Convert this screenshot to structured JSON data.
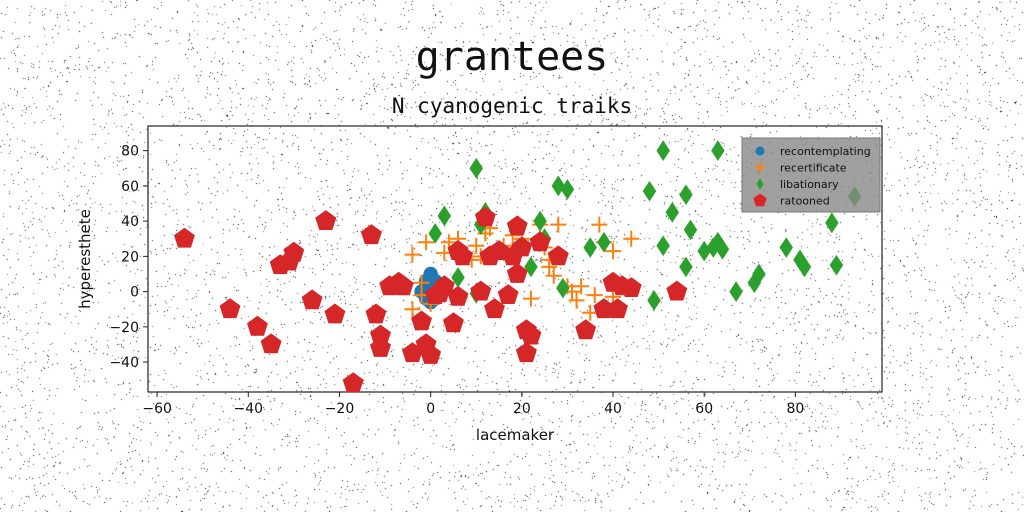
{
  "chart_data": {
    "type": "scatter",
    "title": "grantees",
    "subtitle": "N cyanogenic traiks",
    "xlabel": "lacemaker",
    "ylabel": "hyperesthete",
    "xlim": [
      -62,
      99
    ],
    "ylim": [
      -57,
      94
    ],
    "xticks": [
      -60,
      -40,
      -20,
      0,
      20,
      40,
      60,
      80
    ],
    "yticks": [
      -40,
      -20,
      0,
      20,
      40,
      60,
      80
    ],
    "grid": false,
    "legend_position": "top-right",
    "series": [
      {
        "name": "recontemplating",
        "marker": "circle",
        "color": "#1f77b4",
        "points": [
          [
            0,
            0
          ],
          [
            0,
            1
          ],
          [
            0,
            2
          ],
          [
            0,
            3
          ],
          [
            0,
            4
          ],
          [
            0,
            5
          ],
          [
            0,
            6
          ],
          [
            0,
            7
          ],
          [
            0,
            8
          ],
          [
            0,
            9
          ],
          [
            0,
            10
          ],
          [
            0,
            -1
          ],
          [
            0,
            -2
          ],
          [
            0,
            -3
          ],
          [
            0,
            -4
          ],
          [
            0,
            -5
          ],
          [
            0,
            -6
          ],
          [
            1,
            0
          ],
          [
            1,
            2
          ],
          [
            1,
            4
          ],
          [
            1,
            -2
          ],
          [
            -1,
            1
          ],
          [
            -1,
            3
          ],
          [
            -1,
            -1
          ],
          [
            1,
            6
          ],
          [
            -1,
            6
          ],
          [
            1,
            -4
          ],
          [
            -1,
            -4
          ],
          [
            2,
            1
          ],
          [
            -2,
            0
          ]
        ]
      },
      {
        "name": "recertificate",
        "marker": "plus",
        "color": "#ff7f0e",
        "points": [
          [
            -4,
            21
          ],
          [
            -4,
            -10
          ],
          [
            -2,
            5
          ],
          [
            -2,
            -2
          ],
          [
            -1,
            28
          ],
          [
            0,
            -7
          ],
          [
            3,
            22
          ],
          [
            4,
            28
          ],
          [
            6,
            30
          ],
          [
            9,
            18
          ],
          [
            10,
            26
          ],
          [
            11,
            20
          ],
          [
            12,
            33
          ],
          [
            13,
            36
          ],
          [
            14,
            -10
          ],
          [
            16,
            22
          ],
          [
            16,
            26
          ],
          [
            18,
            32
          ],
          [
            20,
            30
          ],
          [
            22,
            -4
          ],
          [
            24,
            38
          ],
          [
            25,
            25
          ],
          [
            26,
            18
          ],
          [
            26,
            14
          ],
          [
            27,
            9
          ],
          [
            28,
            38
          ],
          [
            30,
            3
          ],
          [
            31,
            0
          ],
          [
            32,
            -5
          ],
          [
            33,
            3
          ],
          [
            35,
            -12
          ],
          [
            36,
            -2
          ],
          [
            37,
            38
          ],
          [
            38,
            28
          ],
          [
            40,
            23
          ],
          [
            40,
            -3
          ],
          [
            44,
            30
          ]
        ]
      },
      {
        "name": "libationary",
        "marker": "diamond",
        "color": "#2ca02c",
        "points": [
          [
            1,
            33
          ],
          [
            3,
            43
          ],
          [
            6,
            8
          ],
          [
            10,
            70
          ],
          [
            10,
            -1
          ],
          [
            11,
            38
          ],
          [
            12,
            45
          ],
          [
            22,
            14
          ],
          [
            24,
            40
          ],
          [
            25,
            30
          ],
          [
            28,
            60
          ],
          [
            29,
            2
          ],
          [
            30,
            58
          ],
          [
            35,
            25
          ],
          [
            38,
            28
          ],
          [
            48,
            57
          ],
          [
            49,
            -5
          ],
          [
            51,
            80
          ],
          [
            51,
            26
          ],
          [
            53,
            45
          ],
          [
            56,
            14
          ],
          [
            56,
            55
          ],
          [
            57,
            35
          ],
          [
            60,
            23
          ],
          [
            62,
            25
          ],
          [
            63,
            80
          ],
          [
            63,
            28
          ],
          [
            64,
            24
          ],
          [
            67,
            0
          ],
          [
            71,
            5
          ],
          [
            72,
            10
          ],
          [
            78,
            25
          ],
          [
            81,
            18
          ],
          [
            82,
            14
          ],
          [
            88,
            39
          ],
          [
            89,
            15
          ],
          [
            93,
            54
          ]
        ]
      },
      {
        "name": "ratooned",
        "marker": "pentagon",
        "color": "#d62728",
        "points": [
          [
            -54,
            30
          ],
          [
            -44,
            -10
          ],
          [
            -38,
            -20
          ],
          [
            -35,
            -30
          ],
          [
            -33,
            15
          ],
          [
            -31,
            17
          ],
          [
            -30,
            22
          ],
          [
            -26,
            -5
          ],
          [
            -23,
            40
          ],
          [
            -21,
            -13
          ],
          [
            -17,
            -52
          ],
          [
            -13,
            32
          ],
          [
            -12,
            -13
          ],
          [
            -11,
            -25
          ],
          [
            -11,
            -32
          ],
          [
            -9,
            3
          ],
          [
            -7,
            5
          ],
          [
            -6,
            3
          ],
          [
            -4,
            -35
          ],
          [
            -2,
            -17
          ],
          [
            -1,
            -30
          ],
          [
            0,
            -36
          ],
          [
            1,
            -2
          ],
          [
            2,
            -1
          ],
          [
            3,
            3
          ],
          [
            5,
            -18
          ],
          [
            6,
            -3
          ],
          [
            6,
            23
          ],
          [
            7,
            20
          ],
          [
            11,
            0
          ],
          [
            12,
            42
          ],
          [
            13,
            20
          ],
          [
            14,
            -10
          ],
          [
            15,
            23
          ],
          [
            17,
            -2
          ],
          [
            18,
            20
          ],
          [
            19,
            37
          ],
          [
            19,
            10
          ],
          [
            20,
            25
          ],
          [
            21,
            -22
          ],
          [
            21,
            -35
          ],
          [
            22,
            -25
          ],
          [
            24,
            28
          ],
          [
            28,
            20
          ],
          [
            34,
            -22
          ],
          [
            38,
            -10
          ],
          [
            40,
            5
          ],
          [
            41,
            -10
          ],
          [
            42,
            3
          ],
          [
            44,
            2
          ],
          [
            54,
            0
          ]
        ]
      }
    ]
  }
}
